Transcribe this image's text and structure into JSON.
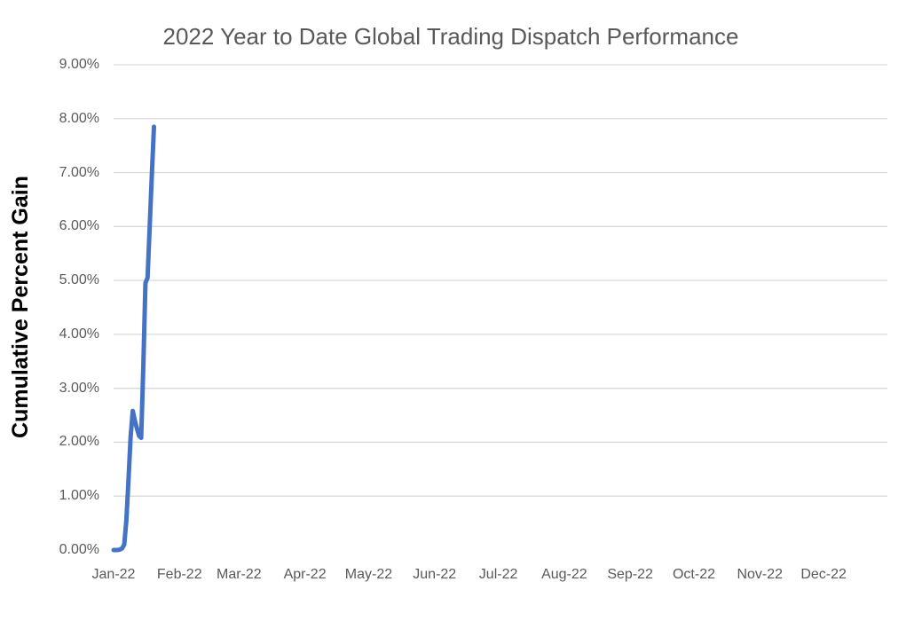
{
  "chart_data": {
    "type": "line",
    "title": "2022 Year to Date Global Trading Dispatch Performance",
    "xlabel": "",
    "ylabel": "Cumulative Percent Gain",
    "ylim": [
      0,
      9
    ],
    "y_tick_labels": [
      "0.00%",
      "1.00%",
      "2.00%",
      "3.00%",
      "4.00%",
      "5.00%",
      "6.00%",
      "7.00%",
      "8.00%",
      "9.00%"
    ],
    "x_tick_labels": [
      "Jan-22",
      "Feb-22",
      "Mar-22",
      "Apr-22",
      "May-22",
      "Jun-22",
      "Jul-22",
      "Aug-22",
      "Sep-22",
      "Oct-22",
      "Nov-22",
      "Dec-22"
    ],
    "x_axis_type": "date, full year 2022, labels at first of each month",
    "grid": "horizontal major gridlines at each 1.00% (0% baseline not drawn)",
    "legend": "none",
    "colors": {
      "line": "#4472C4",
      "gridline": "#D9D9D9",
      "axis_text": "#595959",
      "title_text": "#595959",
      "y_axis_title_text": "#000000",
      "background": "#FFFFFF"
    },
    "series": [
      {
        "name": "Cumulative Percent Gain",
        "unit": "percent",
        "x_unit": "day of year (January only has data)",
        "points": [
          {
            "day": 1,
            "value": 0.0
          },
          {
            "day": 2,
            "value": 0.0
          },
          {
            "day": 3,
            "value": 0.0
          },
          {
            "day": 4,
            "value": 0.01
          },
          {
            "day": 5,
            "value": 0.03
          },
          {
            "day": 6,
            "value": 0.1
          },
          {
            "day": 7,
            "value": 0.55
          },
          {
            "day": 8,
            "value": 1.3
          },
          {
            "day": 9,
            "value": 2.1
          },
          {
            "day": 10,
            "value": 2.58
          },
          {
            "day": 11,
            "value": 2.4
          },
          {
            "day": 12,
            "value": 2.25
          },
          {
            "day": 13,
            "value": 2.12
          },
          {
            "day": 14,
            "value": 2.08
          },
          {
            "day": 15,
            "value": 3.4
          },
          {
            "day": 16,
            "value": 4.95
          },
          {
            "day": 17,
            "value": 5.05
          },
          {
            "day": 18,
            "value": 6.0
          },
          {
            "day": 19,
            "value": 6.95
          },
          {
            "day": 20,
            "value": 7.85
          }
        ]
      }
    ]
  }
}
